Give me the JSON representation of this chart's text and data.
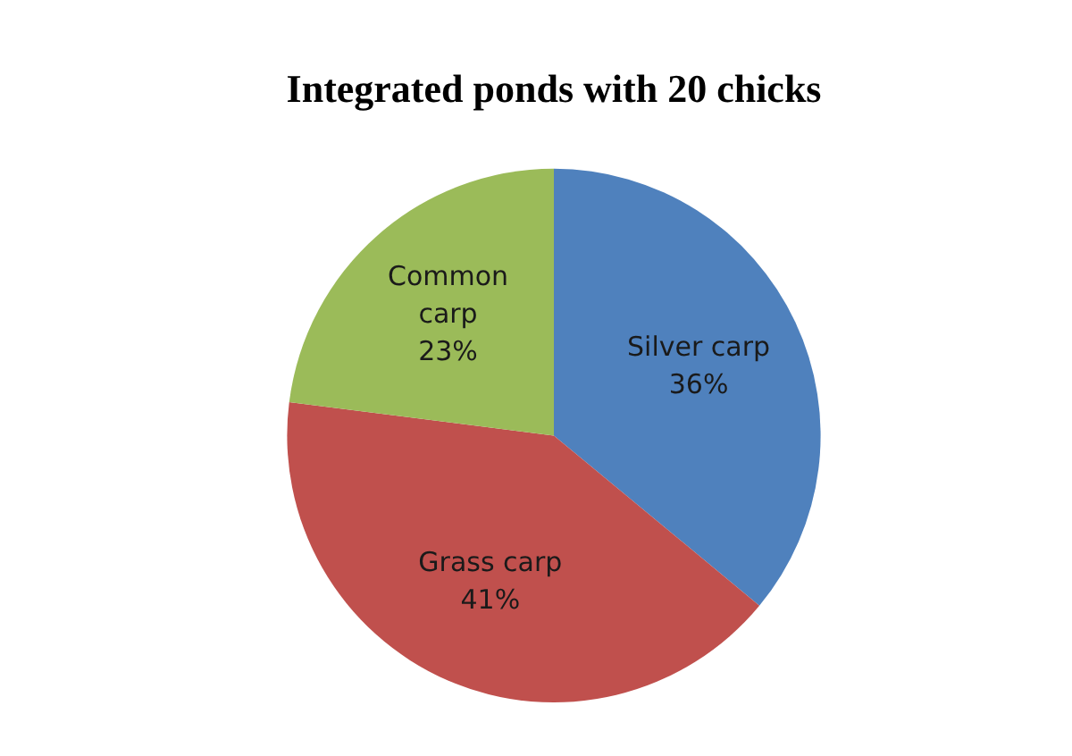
{
  "chart_data": {
    "type": "pie",
    "title": "Integrated ponds with 20 chicks",
    "categories": [
      "Silver carp",
      "Grass carp",
      "Common carp"
    ],
    "values": [
      36,
      41,
      23
    ],
    "colors": [
      "#4f81bd",
      "#c0504d",
      "#9bbb59"
    ],
    "value_labels": [
      "36%",
      "41%",
      "23%"
    ],
    "legend": false
  }
}
